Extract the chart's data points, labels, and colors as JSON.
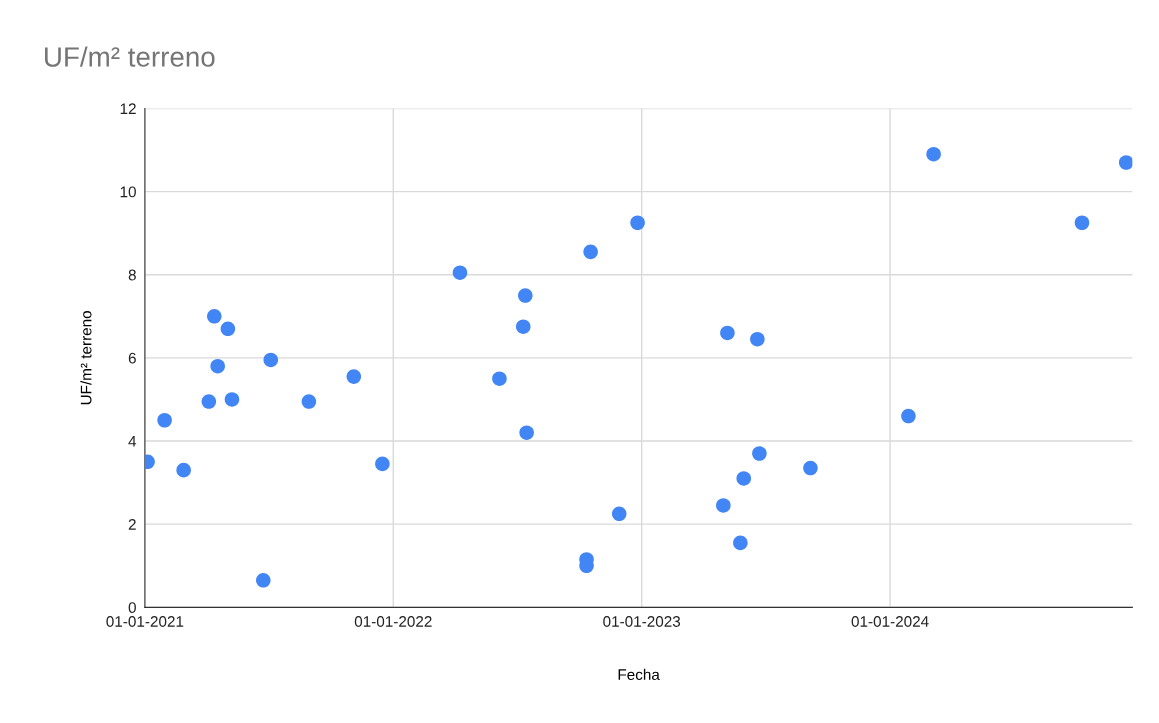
{
  "chart_data": {
    "type": "scatter",
    "title": "UF/m² terreno",
    "xlabel": "Fecha",
    "ylabel": "UF/m² terreno",
    "x": [
      "2021-01-05",
      "2021-01-30",
      "2021-02-27",
      "2021-04-05",
      "2021-04-13",
      "2021-04-18",
      "2021-05-03",
      "2021-05-09",
      "2021-06-24",
      "2021-07-05",
      "2021-08-30",
      "2021-11-04",
      "2021-12-16",
      "2022-04-09",
      "2022-06-06",
      "2022-07-11",
      "2022-07-14",
      "2022-07-16",
      "2022-10-12",
      "2022-10-12",
      "2022-10-18",
      "2022-11-29",
      "2022-12-26",
      "2023-05-01",
      "2023-05-07",
      "2023-05-26",
      "2023-05-31",
      "2023-06-20",
      "2023-06-23",
      "2023-09-06",
      "2024-01-28",
      "2024-03-05",
      "2024-10-09",
      "2024-12-13"
    ],
    "series": [
      {
        "color": "#4285f4",
        "values": [
          3.5,
          4.5,
          3.3,
          4.95,
          7.0,
          5.8,
          6.7,
          5.0,
          0.65,
          5.95,
          4.95,
          5.55,
          3.45,
          8.05,
          5.5,
          6.75,
          7.5,
          4.2,
          1.15,
          1.0,
          8.55,
          2.25,
          9.25,
          2.45,
          6.6,
          1.55,
          3.1,
          6.45,
          3.7,
          3.35,
          4.6,
          10.9,
          9.25,
          10.7
        ]
      }
    ],
    "xlim": [
      "2021-01-01",
      "2024-12-22"
    ],
    "xticks": [
      {
        "value": "2021-01-01",
        "label": "01-01-2021"
      },
      {
        "value": "2022-01-01",
        "label": "01-01-2022"
      },
      {
        "value": "2023-01-01",
        "label": "01-01-2023"
      },
      {
        "value": "2024-01-01",
        "label": "01-01-2024"
      }
    ],
    "ylim": [
      0,
      12
    ],
    "yticks": [
      0,
      2,
      4,
      6,
      8,
      10,
      12
    ],
    "grid": true,
    "marker": "circle",
    "legend": false
  }
}
